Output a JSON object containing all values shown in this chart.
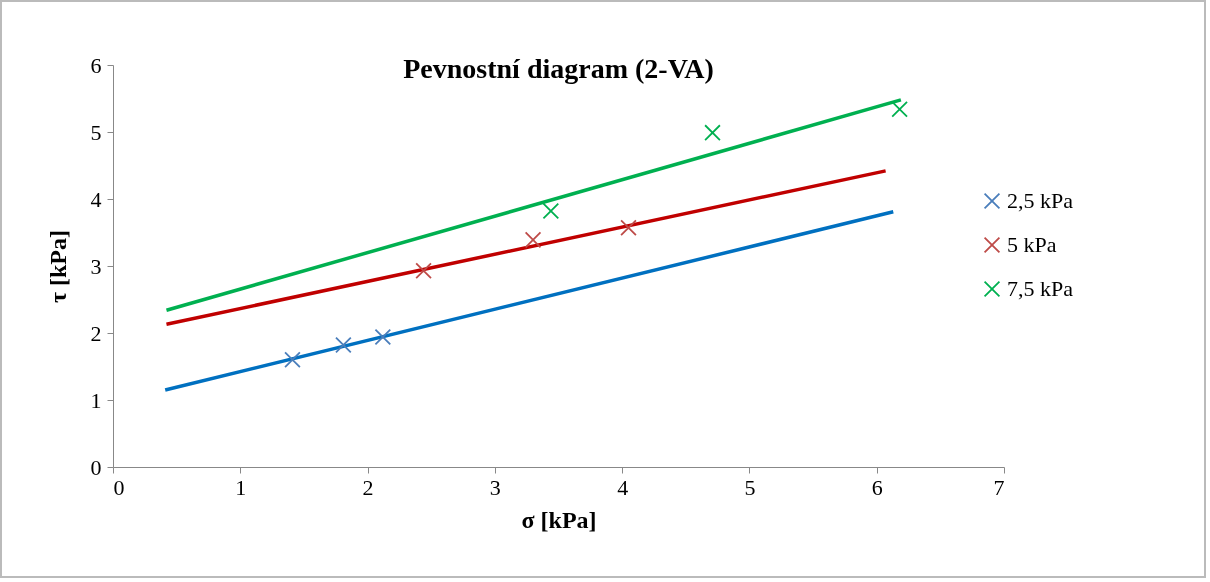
{
  "chart_data": {
    "type": "scatter",
    "title": "Pevnostní diagram (2-VA)",
    "xlabel": "σ [kPa]",
    "ylabel": "τ [kPa]",
    "xlim": [
      0,
      7
    ],
    "xticks": [
      0,
      1,
      2,
      3,
      4,
      5,
      6,
      7
    ],
    "ylim": [
      0,
      6
    ],
    "yticks": [
      0,
      1,
      2,
      3,
      4,
      5,
      6
    ],
    "grid": false,
    "legend": "right",
    "marker": "cross",
    "series": [
      {
        "name": "2,5 kPa",
        "color": "#4a7ebb",
        "x": [
          1.41,
          1.81,
          2.12
        ],
        "values": [
          1.6,
          1.82,
          1.94
        ]
      },
      {
        "name": "5 kPa",
        "color": "#be4b48",
        "x": [
          2.44,
          3.3,
          4.05
        ],
        "values": [
          2.93,
          3.39,
          3.57
        ]
      },
      {
        "name": "7,5 kPa",
        "color": "#00b050",
        "x": [
          3.44,
          4.71,
          6.18
        ],
        "values": [
          3.82,
          4.99,
          5.34
        ]
      },
      {
        "type": "line",
        "marker": "none",
        "color": "#0070c0",
        "x": [
          0.41,
          6.13
        ],
        "values": [
          1.15,
          3.81
        ]
      },
      {
        "type": "line",
        "marker": "none",
        "color": "#c00000",
        "x": [
          0.42,
          6.07
        ],
        "values": [
          2.13,
          4.42
        ]
      },
      {
        "type": "line",
        "marker": "none",
        "color": "#00b050",
        "x": [
          0.42,
          6.19
        ],
        "values": [
          2.34,
          5.48
        ]
      }
    ]
  }
}
